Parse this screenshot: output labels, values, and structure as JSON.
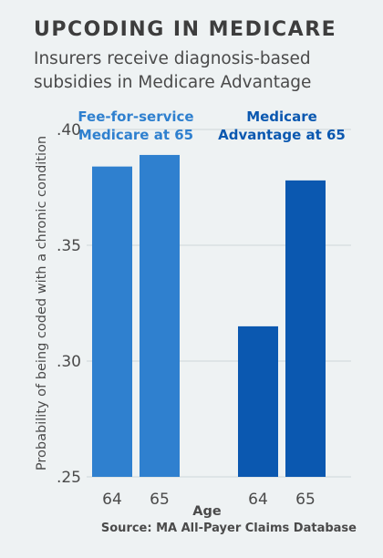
{
  "header": {
    "title": "UPCODING IN MEDICARE",
    "subtitle": "Insurers receive diagnosis-based subsidies in Medicare Advantage"
  },
  "source": "Source: MA All-Payer Claims Database",
  "chart_data": {
    "type": "bar",
    "title": "",
    "xlabel": "Age",
    "ylabel": "Probability of being coded with a chronic condition",
    "ylim": [
      0.25,
      0.4
    ],
    "yticks": [
      {
        "value": 0.25,
        "label": ".25"
      },
      {
        "value": 0.3,
        "label": ".30"
      },
      {
        "value": 0.35,
        "label": ".35"
      },
      {
        "value": 0.4,
        "label": ".40"
      }
    ],
    "grid": true,
    "groups": [
      {
        "name": "Fee-for-service Medicare at 65",
        "label_lines": [
          "Fee-for-service",
          "Medicare at 65"
        ],
        "color": "#2f80cf",
        "categories": [
          "64",
          "65"
        ],
        "values": [
          0.384,
          0.389
        ]
      },
      {
        "name": "Medicare Advantage at 65",
        "label_lines": [
          "Medicare",
          "Advantage at 65"
        ],
        "color": "#0b58b0",
        "categories": [
          "64",
          "65"
        ],
        "values": [
          0.315,
          0.378
        ]
      }
    ]
  }
}
